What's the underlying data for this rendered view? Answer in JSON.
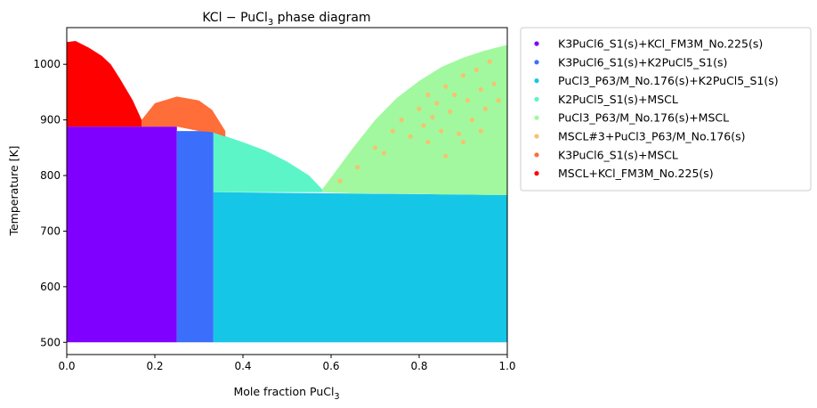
{
  "chart_data": {
    "type": "scatter",
    "title": "KCl − PuCl",
    "title_sub": "3",
    "title_tail": " phase diagram",
    "xlabel": "Mole fraction PuCl",
    "xlabel_sub": "3",
    "ylabel": "Temperature [K]",
    "xlim": [
      0.0,
      1.0
    ],
    "ylim": [
      478,
      1066
    ],
    "xticks": [
      0.0,
      0.2,
      0.4,
      0.6,
      0.8,
      1.0
    ],
    "xtick_labels": [
      "0.0",
      "0.2",
      "0.4",
      "0.6",
      "0.8",
      "1.0"
    ],
    "yticks": [
      500,
      600,
      700,
      800,
      900,
      1000
    ],
    "ytick_labels": [
      "500",
      "600",
      "700",
      "800",
      "900",
      "1000"
    ],
    "legend_position": "outside-right",
    "grid": false,
    "series": [
      {
        "name": "K3PuCl6_S1(s)+KCl_FM3M_No.225(s)",
        "color": "#8000ff",
        "regions": [
          {
            "x": [
              0.0,
              0.25
            ],
            "y_low": [
              500,
              500
            ],
            "y_high": [
              888,
              888
            ]
          }
        ]
      },
      {
        "name": "K3PuCl6_S1(s)+K2PuCl5_S1(s)",
        "color": "#3b6efb",
        "regions": [
          {
            "x": [
              0.25,
              0.333
            ],
            "y_low": [
              500,
              500
            ],
            "y_high": [
              880,
              880
            ]
          }
        ]
      },
      {
        "name": "PuCl3_P63/M_No.176(s)+K2PuCl5_S1(s)",
        "color": "#16c6e6",
        "regions": [
          {
            "x": [
              0.333,
              1.0
            ],
            "y_low": [
              500,
              500
            ],
            "y_high": [
              770,
              765
            ]
          }
        ]
      },
      {
        "name": "K2PuCl5_S1(s)+MSCL",
        "color": "#5cf5c8",
        "regions": [
          {
            "x": [
              0.333,
              0.4,
              0.45,
              0.5,
              0.55,
              0.58
            ],
            "y_low": [
              770,
              770,
              770,
              770,
              770,
              770
            ],
            "y_high": [
              878,
              860,
              845,
              825,
              800,
              775
            ]
          }
        ]
      },
      {
        "name": "PuCl3_P63/M_No.176(s)+MSCL",
        "color": "#a2f89f",
        "regions": [
          {
            "x": [
              0.58,
              0.65,
              0.7,
              0.75,
              0.8,
              0.85,
              0.9,
              0.95,
              1.0
            ],
            "y_low": [
              770,
              768,
              768,
              767,
              767,
              766,
              766,
              765,
              765
            ],
            "y_high": [
              775,
              850,
              900,
              940,
              970,
              995,
              1012,
              1025,
              1035
            ]
          }
        ]
      },
      {
        "name": "MSCL#3+PuCl3_P63/M_No.176(s)",
        "color": "#f6c270",
        "points": [
          [
            0.62,
            790
          ],
          [
            0.66,
            815
          ],
          [
            0.7,
            850
          ],
          [
            0.72,
            840
          ],
          [
            0.74,
            880
          ],
          [
            0.76,
            900
          ],
          [
            0.78,
            870
          ],
          [
            0.8,
            920
          ],
          [
            0.81,
            890
          ],
          [
            0.82,
            945
          ],
          [
            0.83,
            905
          ],
          [
            0.84,
            930
          ],
          [
            0.85,
            880
          ],
          [
            0.86,
            960
          ],
          [
            0.87,
            915
          ],
          [
            0.88,
            945
          ],
          [
            0.89,
            875
          ],
          [
            0.9,
            980
          ],
          [
            0.91,
            935
          ],
          [
            0.92,
            900
          ],
          [
            0.93,
            990
          ],
          [
            0.94,
            955
          ],
          [
            0.95,
            920
          ],
          [
            0.96,
            1005
          ],
          [
            0.97,
            965
          ],
          [
            0.98,
            935
          ],
          [
            0.82,
            860
          ],
          [
            0.86,
            835
          ],
          [
            0.9,
            860
          ],
          [
            0.94,
            880
          ]
        ]
      },
      {
        "name": "K3PuCl6_S1(s)+MSCL",
        "color": "#ff6d38",
        "regions": [
          {
            "x": [
              0.17,
              0.2,
              0.25,
              0.3,
              0.33,
              0.36
            ],
            "y_low": [
              888,
              888,
              888,
              880,
              878,
              870
            ],
            "y_high": [
              900,
              930,
              942,
              935,
              918,
              880
            ]
          }
        ]
      },
      {
        "name": "MSCL+KCl_FM3M_No.225(s)",
        "color": "#ff0000",
        "regions": [
          {
            "x": [
              0.0,
              0.02,
              0.05,
              0.08,
              0.1,
              0.12,
              0.15,
              0.17
            ],
            "y_low": [
              888,
              888,
              888,
              888,
              888,
              888,
              888,
              888
            ],
            "y_high": [
              1040,
              1042,
              1030,
              1015,
              1000,
              975,
              935,
              900
            ]
          }
        ]
      }
    ]
  }
}
